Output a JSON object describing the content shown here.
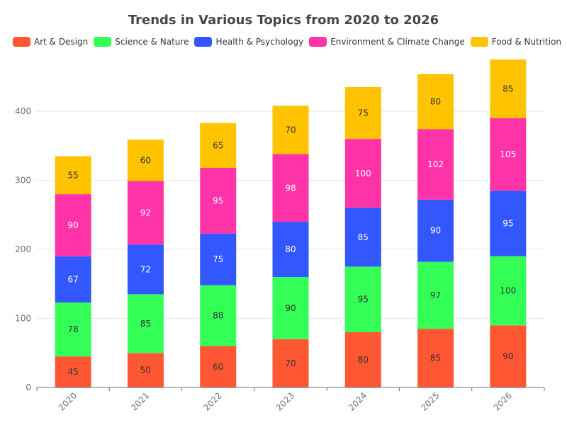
{
  "chart_data": {
    "type": "bar",
    "stacked": true,
    "title": "Trends in Various Topics from 2020 to 2026",
    "categories": [
      "2020",
      "2021",
      "2022",
      "2023",
      "2024",
      "2025",
      "2026"
    ],
    "ylim": [
      0,
      475
    ],
    "yticks": [
      0,
      100,
      200,
      300,
      400
    ],
    "grid": true,
    "legend_position": "top",
    "series": [
      {
        "name": "Art & Design",
        "color": "#ff5733",
        "label_color": "#333333",
        "values": [
          45,
          50,
          60,
          70,
          80,
          85,
          90
        ]
      },
      {
        "name": "Science & Nature",
        "color": "#33ff57",
        "label_color": "#333333",
        "values": [
          78,
          85,
          88,
          90,
          95,
          97,
          100
        ]
      },
      {
        "name": "Health & Psychology",
        "color": "#3357ff",
        "label_color": "#ffffff",
        "values": [
          67,
          72,
          75,
          80,
          85,
          90,
          95
        ]
      },
      {
        "name": "Environment & Climate Change",
        "color": "#ff33a8",
        "label_color": "#ffffff",
        "values": [
          90,
          92,
          95,
          98,
          100,
          102,
          105
        ]
      },
      {
        "name": "Food & Nutrition",
        "color": "#ffc300",
        "label_color": "#333333",
        "values": [
          55,
          60,
          65,
          70,
          75,
          80,
          85
        ]
      }
    ]
  }
}
